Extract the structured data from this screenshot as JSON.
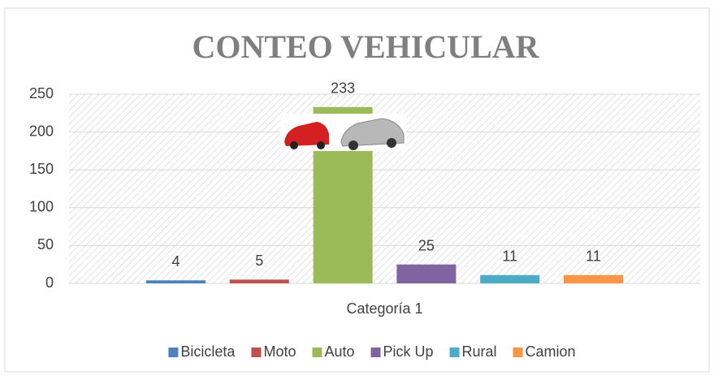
{
  "chart_data": {
    "type": "bar",
    "title": "CONTEO VEHICULAR",
    "categories": [
      "Categoría 1"
    ],
    "series": [
      {
        "name": "Bicicleta",
        "color": "#4f81bd",
        "values": [
          4
        ]
      },
      {
        "name": "Moto",
        "color": "#c0504d",
        "values": [
          5
        ]
      },
      {
        "name": "Auto",
        "color": "#9bbb59",
        "values": [
          233
        ]
      },
      {
        "name": "Pick Up",
        "color": "#8064a2",
        "values": [
          25
        ]
      },
      {
        "name": "Rural",
        "color": "#4bacc6",
        "values": [
          11
        ]
      },
      {
        "name": "Camion",
        "color": "#f79646",
        "values": [
          11
        ]
      }
    ],
    "ylim": [
      0,
      250
    ],
    "yticks": [
      0,
      50,
      100,
      150,
      200,
      250
    ],
    "grid": true,
    "legend": "bottom"
  }
}
